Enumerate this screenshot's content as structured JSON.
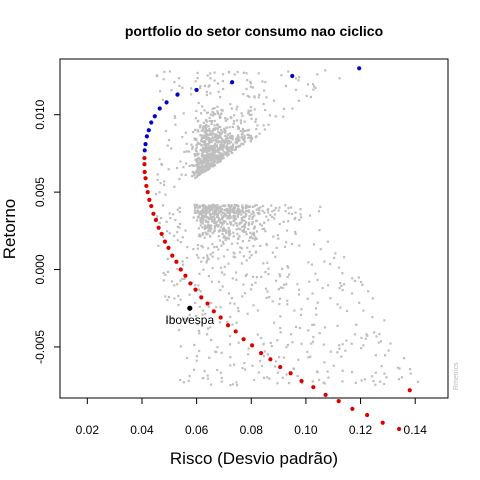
{
  "chart_data": {
    "type": "scatter",
    "title": "portfolio do setor consumo nao ciclico",
    "xlabel": "Risco (Desvio padrão)",
    "ylabel": "Retorno",
    "xlim": [
      0.01,
      0.152
    ],
    "ylim": [
      -0.0083,
      0.0136
    ],
    "x_ticks": [
      0.02,
      0.04,
      0.06,
      0.08,
      0.1,
      0.12,
      0.14
    ],
    "x_tick_labels": [
      "0.02",
      "0.04",
      "0.06",
      "0.08",
      "0.10",
      "0.12",
      "0.14"
    ],
    "y_ticks": [
      -0.005,
      0.0,
      0.005,
      0.01
    ],
    "y_tick_labels": [
      "-0.005",
      "0.000",
      "0.005",
      "0.010"
    ],
    "grid": false,
    "colors": {
      "random": "#bebebe",
      "efficient": "#0000cc",
      "inefficient": "#dd0000",
      "benchmark": "#000000"
    },
    "series": [
      {
        "role": "efficient",
        "points": [
          [
            0.1195,
            0.013
          ],
          [
            0.095,
            0.0125
          ],
          [
            0.073,
            0.0121
          ],
          [
            0.06,
            0.0116
          ],
          [
            0.053,
            0.0113
          ],
          [
            0.049,
            0.0108
          ],
          [
            0.0465,
            0.0104
          ],
          [
            0.0447,
            0.0099
          ],
          [
            0.0434,
            0.0095
          ],
          [
            0.0425,
            0.009
          ],
          [
            0.0418,
            0.0086
          ],
          [
            0.0413,
            0.0081
          ],
          [
            0.041,
            0.0077
          ]
        ]
      },
      {
        "role": "inefficient",
        "points": [
          [
            0.0409,
            0.0072
          ],
          [
            0.0409,
            0.0068
          ],
          [
            0.041,
            0.0063
          ],
          [
            0.0413,
            0.0059
          ],
          [
            0.0416,
            0.0054
          ],
          [
            0.0421,
            0.005
          ],
          [
            0.0427,
            0.0045
          ],
          [
            0.0434,
            0.0041
          ],
          [
            0.0442,
            0.0036
          ],
          [
            0.0451,
            0.0032
          ],
          [
            0.0461,
            0.0027
          ],
          [
            0.0472,
            0.0023
          ],
          [
            0.0484,
            0.0018
          ],
          [
            0.0497,
            0.0014
          ],
          [
            0.0511,
            0.0009
          ],
          [
            0.0526,
            0.0005
          ],
          [
            0.0542,
            0.0
          ],
          [
            0.0559,
            -0.0004
          ],
          [
            0.0577,
            -0.0009
          ],
          [
            0.0596,
            -0.0013
          ],
          [
            0.0617,
            -0.0018
          ],
          [
            0.064,
            -0.0022
          ],
          [
            0.0663,
            -0.0027
          ],
          [
            0.0688,
            -0.0031
          ],
          [
            0.0715,
            -0.0036
          ],
          [
            0.0743,
            -0.004
          ],
          [
            0.0772,
            -0.0045
          ],
          [
            0.0803,
            -0.0049
          ],
          [
            0.0836,
            -0.0054
          ],
          [
            0.087,
            -0.0058
          ],
          [
            0.0906,
            -0.0063
          ],
          [
            0.0944,
            -0.0067
          ],
          [
            0.0984,
            -0.0072
          ],
          [
            0.1027,
            -0.0076
          ],
          [
            0.1072,
            -0.0081
          ],
          [
            0.112,
            -0.0085
          ],
          [
            0.117,
            -0.009
          ],
          [
            0.1224,
            -0.0094
          ],
          [
            0.1281,
            -0.0099
          ],
          [
            0.1341,
            -0.0103
          ],
          [
            0.138,
            -0.0078
          ]
        ]
      },
      {
        "role": "benchmark",
        "name": "Ibovespa",
        "points": [
          [
            0.0575,
            -0.0025
          ]
        ]
      }
    ]
  }
}
